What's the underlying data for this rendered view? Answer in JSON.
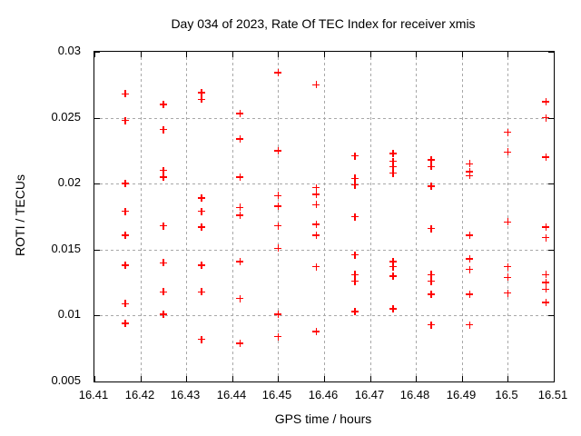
{
  "chart_data": {
    "type": "scatter",
    "title": "Day 034 of 2023, Rate Of TEC Index for receiver xmis",
    "xlabel": "GPS time / hours",
    "ylabel": "ROTI / TECUs",
    "xlim": [
      16.41,
      16.51
    ],
    "ylim": [
      0.005,
      0.03
    ],
    "xticks": [
      16.41,
      16.42,
      16.43,
      16.44,
      16.45,
      16.46,
      16.47,
      16.48,
      16.49,
      16.5,
      16.51
    ],
    "xtick_labels": [
      "16.41",
      "16.42",
      "16.43",
      "16.44",
      "16.45",
      "16.46",
      "16.47",
      "16.48",
      "16.49",
      "16.5",
      "16.51"
    ],
    "yticks": [
      0.005,
      0.01,
      0.015,
      0.02,
      0.025,
      0.03
    ],
    "ytick_labels": [
      "0.005",
      "0.01",
      "0.015",
      "0.02",
      "0.025",
      "0.03"
    ],
    "grid": true,
    "legend": false,
    "marker": "plus",
    "colors": {
      "marker": "#ff0000",
      "grid": "#a8a8a8",
      "border": "#000000",
      "text": "#000000",
      "background": "#ffffff"
    },
    "series": [
      {
        "name": "ROTI",
        "points": [
          [
            16.4167,
            0.0268
          ],
          [
            16.4167,
            0.0248
          ],
          [
            16.4167,
            0.02
          ],
          [
            16.4167,
            0.0179
          ],
          [
            16.4167,
            0.0161
          ],
          [
            16.4167,
            0.0138
          ],
          [
            16.4167,
            0.0109
          ],
          [
            16.4167,
            0.0094
          ],
          [
            16.425,
            0.026
          ],
          [
            16.425,
            0.0241
          ],
          [
            16.425,
            0.021
          ],
          [
            16.425,
            0.0205
          ],
          [
            16.425,
            0.0168
          ],
          [
            16.425,
            0.014
          ],
          [
            16.425,
            0.0118
          ],
          [
            16.425,
            0.0101
          ],
          [
            16.4333,
            0.0269
          ],
          [
            16.4333,
            0.0264
          ],
          [
            16.4333,
            0.0189
          ],
          [
            16.4333,
            0.0179
          ],
          [
            16.4333,
            0.0167
          ],
          [
            16.4333,
            0.0138
          ],
          [
            16.4333,
            0.0118
          ],
          [
            16.4333,
            0.0082
          ],
          [
            16.4417,
            0.0253
          ],
          [
            16.4417,
            0.0234
          ],
          [
            16.4417,
            0.0205
          ],
          [
            16.4417,
            0.0182
          ],
          [
            16.4417,
            0.0176
          ],
          [
            16.4417,
            0.0141
          ],
          [
            16.4417,
            0.0113
          ],
          [
            16.4417,
            0.0079
          ],
          [
            16.45,
            0.0284
          ],
          [
            16.45,
            0.0225
          ],
          [
            16.45,
            0.0191
          ],
          [
            16.45,
            0.0183
          ],
          [
            16.45,
            0.0168
          ],
          [
            16.45,
            0.0151
          ],
          [
            16.45,
            0.0101
          ],
          [
            16.45,
            0.0084
          ],
          [
            16.4583,
            0.0275
          ],
          [
            16.4583,
            0.0197
          ],
          [
            16.4583,
            0.0192
          ],
          [
            16.4583,
            0.0184
          ],
          [
            16.4583,
            0.0169
          ],
          [
            16.4583,
            0.0161
          ],
          [
            16.4583,
            0.0137
          ],
          [
            16.4583,
            0.0088
          ],
          [
            16.4667,
            0.0221
          ],
          [
            16.4667,
            0.0204
          ],
          [
            16.4667,
            0.0199
          ],
          [
            16.4667,
            0.0175
          ],
          [
            16.4667,
            0.0146
          ],
          [
            16.4667,
            0.0131
          ],
          [
            16.4667,
            0.0126
          ],
          [
            16.4667,
            0.0103
          ],
          [
            16.475,
            0.0223
          ],
          [
            16.475,
            0.0217
          ],
          [
            16.475,
            0.0213
          ],
          [
            16.475,
            0.0208
          ],
          [
            16.475,
            0.0141
          ],
          [
            16.475,
            0.0137
          ],
          [
            16.475,
            0.013
          ],
          [
            16.475,
            0.0105
          ],
          [
            16.4833,
            0.0218
          ],
          [
            16.4833,
            0.0213
          ],
          [
            16.4833,
            0.0198
          ],
          [
            16.4833,
            0.0166
          ],
          [
            16.4833,
            0.0131
          ],
          [
            16.4833,
            0.0126
          ],
          [
            16.4833,
            0.0116
          ],
          [
            16.4833,
            0.0093
          ],
          [
            16.4917,
            0.0215
          ],
          [
            16.4917,
            0.0209
          ],
          [
            16.4917,
            0.0206
          ],
          [
            16.4917,
            0.0161
          ],
          [
            16.4917,
            0.0143
          ],
          [
            16.4917,
            0.0135
          ],
          [
            16.4917,
            0.0116
          ],
          [
            16.4917,
            0.0093
          ],
          [
            16.5,
            0.0239
          ],
          [
            16.5,
            0.0224
          ],
          [
            16.5,
            0.0171
          ],
          [
            16.5,
            0.0137
          ],
          [
            16.5,
            0.0129
          ],
          [
            16.5,
            0.0117
          ],
          [
            16.5083,
            0.0262
          ],
          [
            16.5083,
            0.025
          ],
          [
            16.5083,
            0.022
          ],
          [
            16.5083,
            0.0167
          ],
          [
            16.5083,
            0.0159
          ],
          [
            16.5083,
            0.0131
          ],
          [
            16.5083,
            0.0125
          ],
          [
            16.5083,
            0.012
          ],
          [
            16.5083,
            0.011
          ]
        ]
      }
    ]
  }
}
